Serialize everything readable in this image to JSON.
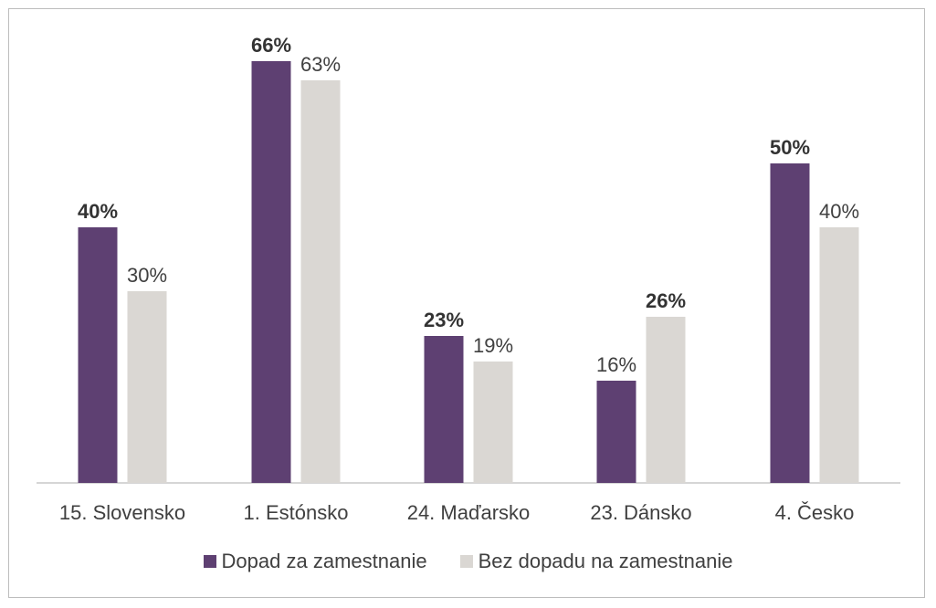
{
  "chart_data": {
    "type": "bar",
    "categories": [
      "15. Slovensko",
      "1. Estónsko",
      "24. Maďarsko",
      "23. Dánsko",
      "4. Česko"
    ],
    "series": [
      {
        "name": "Dopad za zamestnanie",
        "color": "#5e4072",
        "values": [
          40,
          66,
          23,
          16,
          50
        ],
        "labels": [
          "40%",
          "66%",
          "23%",
          "16%",
          "50%"
        ],
        "bold": [
          true,
          true,
          true,
          false,
          true
        ]
      },
      {
        "name": "Bez dopadu na zamestnanie",
        "color": "#dad7d3",
        "values": [
          30,
          63,
          19,
          26,
          40
        ],
        "labels": [
          "30%",
          "63%",
          "19%",
          "26%",
          "40%"
        ],
        "bold": [
          false,
          false,
          false,
          true,
          false
        ]
      }
    ],
    "ylim": [
      0,
      70
    ],
    "grid": false,
    "legend": "bottom",
    "axis_color": "#c8c8c8"
  }
}
